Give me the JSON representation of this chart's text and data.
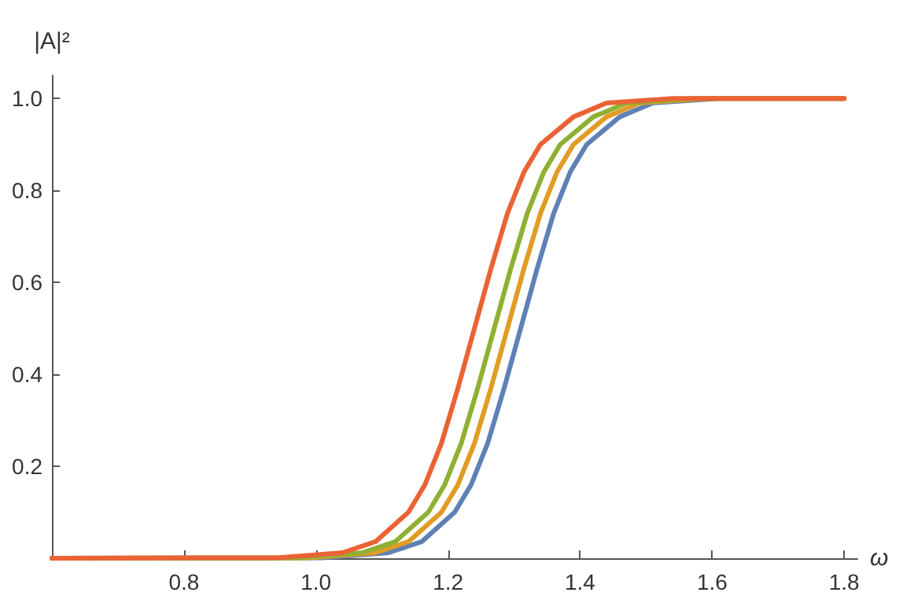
{
  "chart_data": {
    "type": "line",
    "xlabel": "ω",
    "ylabel": "|A|²",
    "xlim": [
      0.6,
      1.82
    ],
    "xticks": [
      0.8,
      {
        "value": 1,
        "label": "1.0"
      },
      1.2,
      1.4,
      1.6,
      1.8
    ],
    "ylim": [
      0,
      1.05
    ],
    "yticks": [
      0.2,
      0.4,
      0.6,
      0.8,
      {
        "value": 1,
        "label": "1.0"
      }
    ],
    "grid": false,
    "marker": "none",
    "line_style": "solid",
    "series": [
      {
        "color": "#5e81b5",
        "x": [
          0.6,
          1.01,
          1.11,
          1.16,
          1.21,
          1.235,
          1.26,
          1.285,
          1.31,
          1.335,
          1.36,
          1.385,
          1.41,
          1.46,
          1.51,
          1.61,
          1.8
        ],
        "values": [
          0,
          0.001,
          0.012,
          0.036,
          0.1,
          0.16,
          0.25,
          0.37,
          0.5,
          0.63,
          0.75,
          0.84,
          0.9,
          0.96,
          0.99,
          1.0,
          1.0
        ]
      },
      {
        "color": "#e19c24",
        "x": [
          0.6,
          0.99,
          1.09,
          1.14,
          1.19,
          1.215,
          1.24,
          1.265,
          1.29,
          1.315,
          1.34,
          1.365,
          1.39,
          1.44,
          1.49,
          1.59,
          1.8
        ],
        "values": [
          0,
          0.001,
          0.012,
          0.036,
          0.1,
          0.16,
          0.25,
          0.37,
          0.5,
          0.63,
          0.75,
          0.84,
          0.9,
          0.96,
          0.99,
          1.0,
          1.0
        ]
      },
      {
        "color": "#8fb032",
        "x": [
          0.6,
          0.97,
          1.07,
          1.12,
          1.17,
          1.195,
          1.22,
          1.245,
          1.27,
          1.295,
          1.32,
          1.345,
          1.37,
          1.42,
          1.47,
          1.57,
          1.8
        ],
        "values": [
          0,
          0.001,
          0.012,
          0.036,
          0.1,
          0.16,
          0.25,
          0.37,
          0.5,
          0.63,
          0.75,
          0.84,
          0.9,
          0.96,
          0.99,
          1.0,
          1.0
        ]
      },
      {
        "color": "#eb6235",
        "x": [
          0.6,
          0.94,
          1.04,
          1.09,
          1.14,
          1.165,
          1.19,
          1.215,
          1.24,
          1.265,
          1.29,
          1.315,
          1.34,
          1.39,
          1.44,
          1.54,
          1.8
        ],
        "values": [
          0,
          0.001,
          0.012,
          0.036,
          0.1,
          0.16,
          0.25,
          0.37,
          0.5,
          0.63,
          0.75,
          0.84,
          0.9,
          0.96,
          0.99,
          1.0,
          1.0
        ]
      }
    ]
  }
}
